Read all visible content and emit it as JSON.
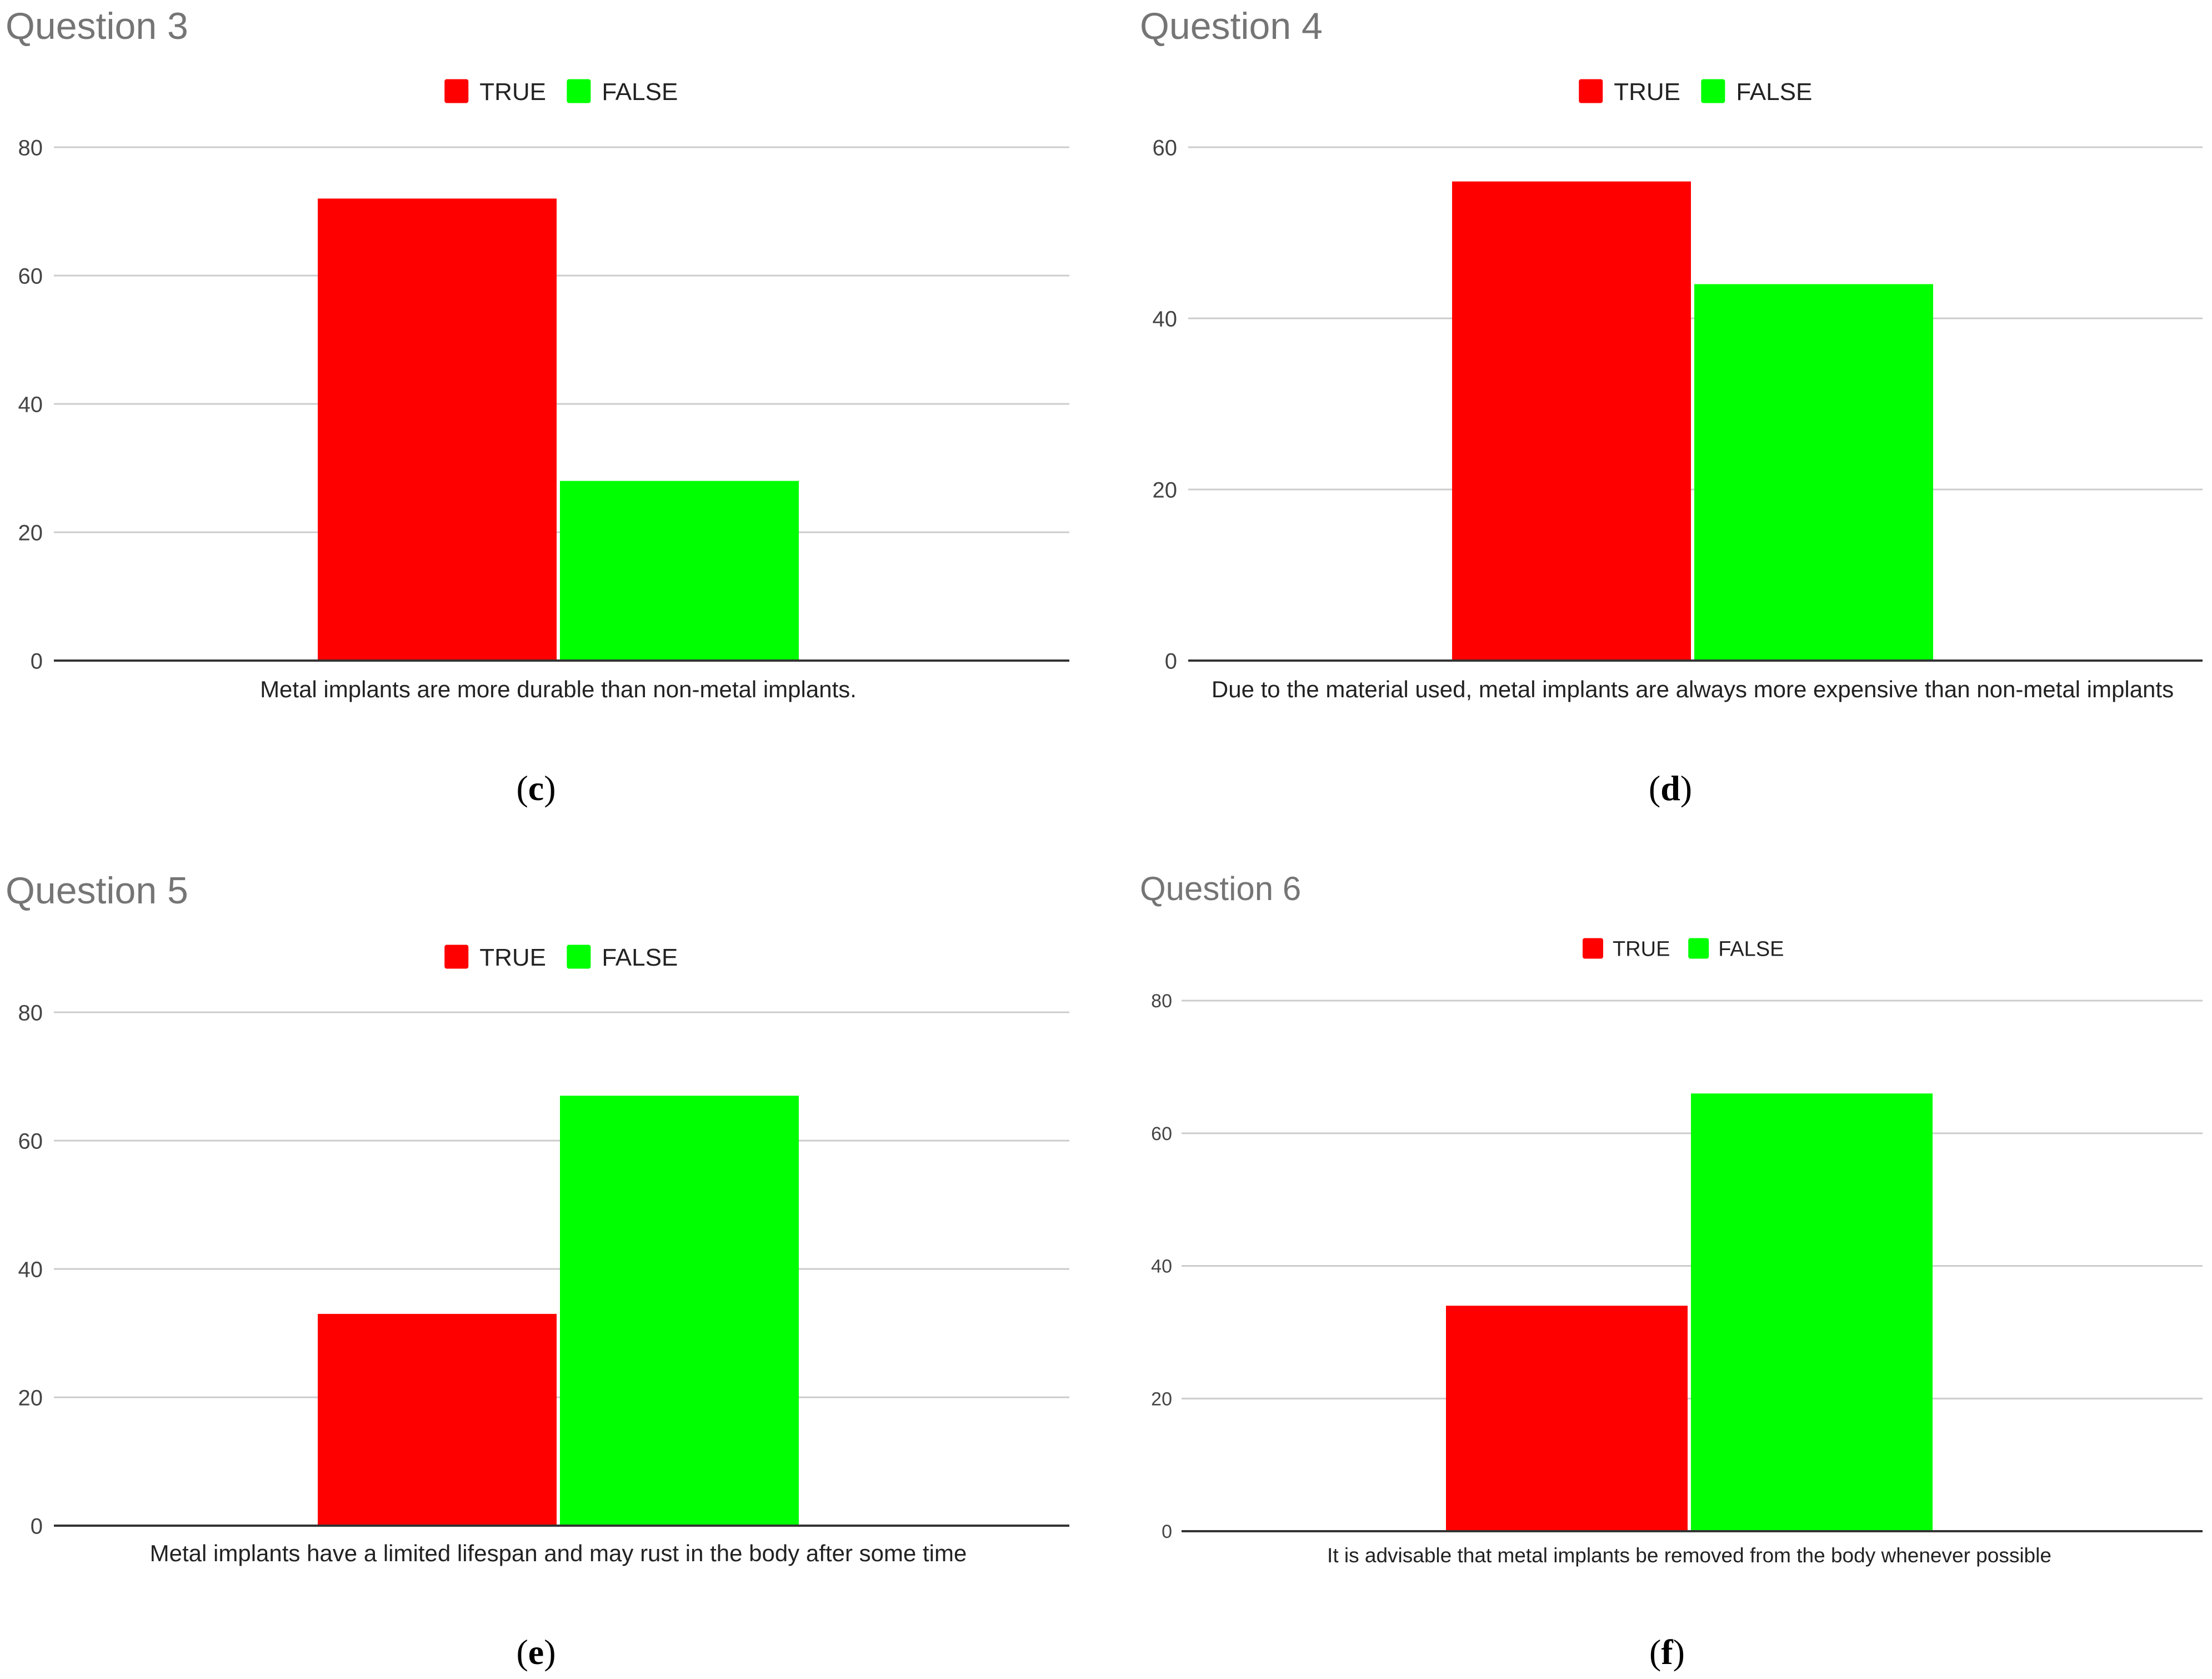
{
  "chart_data": [
    {
      "type": "bar",
      "panel": "c",
      "panel_label": "(c)",
      "title": "Question 3",
      "categories": [
        "Metal implants are more durable than non-metal implants."
      ],
      "series": [
        {
          "name": "TRUE",
          "values": [
            72
          ],
          "color": "#ff0000"
        },
        {
          "name": "FALSE",
          "values": [
            28
          ],
          "color": "#00ff00"
        }
      ],
      "ylim": [
        0,
        80
      ],
      "yticks": [
        "0",
        "20",
        "40",
        "60",
        "80"
      ],
      "grid": true,
      "legend": "top-center"
    },
    {
      "type": "bar",
      "panel": "d",
      "panel_label": "(d)",
      "title": "Question 4",
      "categories": [
        "Due to the material used, metal implants are always more expensive than non-metal implants"
      ],
      "series": [
        {
          "name": "TRUE",
          "values": [
            56
          ],
          "color": "#ff0000"
        },
        {
          "name": "FALSE",
          "values": [
            44
          ],
          "color": "#00ff00"
        }
      ],
      "ylim": [
        0,
        60
      ],
      "yticks": [
        "0",
        "20",
        "40",
        "60"
      ],
      "grid": true,
      "legend": "top-center"
    },
    {
      "type": "bar",
      "panel": "e",
      "panel_label": "(e)",
      "title": "Question 5",
      "categories": [
        "Metal implants have a limited lifespan and may rust in the body after some time"
      ],
      "series": [
        {
          "name": "TRUE",
          "values": [
            33
          ],
          "color": "#ff0000"
        },
        {
          "name": "FALSE",
          "values": [
            67
          ],
          "color": "#00ff00"
        }
      ],
      "ylim": [
        0,
        80
      ],
      "yticks": [
        "0",
        "20",
        "40",
        "60",
        "80"
      ],
      "grid": true,
      "legend": "top-center"
    },
    {
      "type": "bar",
      "panel": "f",
      "panel_label": "(f)",
      "title": "Question 6",
      "categories": [
        "It is advisable that metal implants be removed from the body whenever possible"
      ],
      "series": [
        {
          "name": "TRUE",
          "values": [
            34
          ],
          "color": "#ff0000"
        },
        {
          "name": "FALSE",
          "values": [
            66
          ],
          "color": "#00ff00"
        }
      ],
      "ylim": [
        0,
        80
      ],
      "yticks": [
        "0",
        "20",
        "40",
        "60",
        "80"
      ],
      "grid": true,
      "legend": "top-center"
    }
  ]
}
